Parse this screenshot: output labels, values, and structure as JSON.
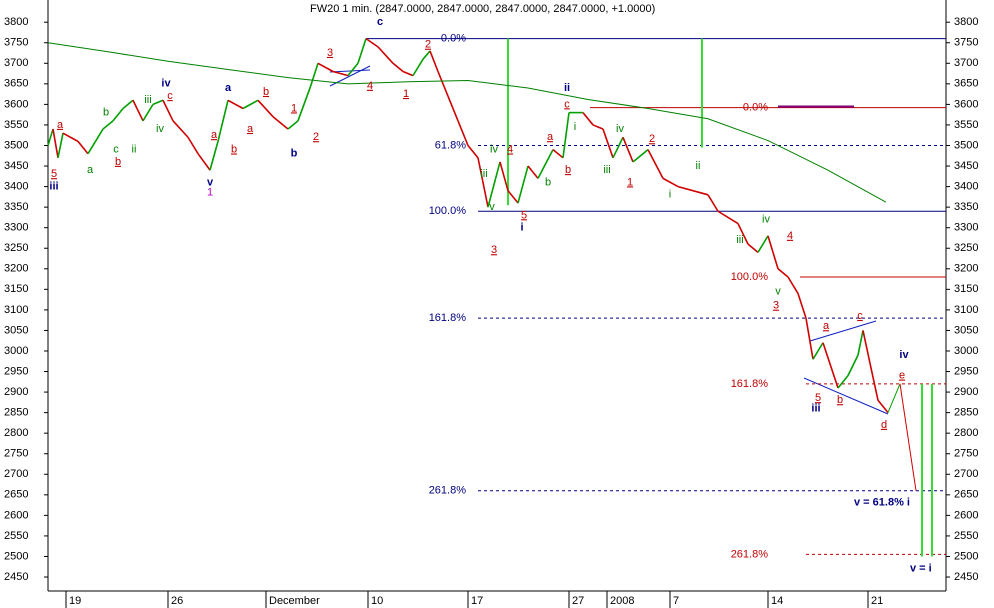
{
  "chart_data": {
    "type": "line",
    "title": "FW20 1 min. (2847.0000, 2847.0000, 2847.0000, 2847.0000, +1.0000)",
    "xlim": [
      0,
      898
    ],
    "ylim": [
      2416,
      3854
    ],
    "yticks": [
      2450,
      2500,
      2550,
      2600,
      2650,
      2700,
      2750,
      2800,
      2850,
      2900,
      2950,
      3000,
      3050,
      3100,
      3150,
      3200,
      3250,
      3300,
      3350,
      3400,
      3450,
      3500,
      3550,
      3600,
      3650,
      3700,
      3750,
      3800
    ],
    "xticks": [
      {
        "value": 18,
        "label": "19"
      },
      {
        "value": 120,
        "label": "26"
      },
      {
        "value": 218,
        "label": "December"
      },
      {
        "value": 320,
        "label": "10"
      },
      {
        "value": 420,
        "label": "17"
      },
      {
        "value": 521,
        "label": "27"
      },
      {
        "value": 559,
        "label": "2008"
      },
      {
        "value": 622,
        "label": "7"
      },
      {
        "value": 720,
        "label": "14"
      },
      {
        "value": 820,
        "label": "21"
      }
    ],
    "up_color": "#00a000",
    "down_color": "#d00000",
    "series": [
      {
        "x": [
          0,
          5,
          10,
          15,
          30,
          40,
          55,
          65,
          75,
          85,
          95,
          105,
          115,
          125,
          140,
          150,
          162,
          170,
          180,
          195,
          210,
          225,
          240,
          250,
          262,
          270,
          285,
          300,
          310,
          318,
          330,
          345,
          355,
          365,
          375,
          382,
          390,
          400,
          410,
          420,
          430,
          440,
          452,
          460,
          470,
          480,
          490,
          505,
          515,
          521,
          535,
          545,
          555,
          565,
          575,
          585,
          600,
          615,
          630,
          645,
          660,
          670,
          690,
          700,
          710,
          720,
          730,
          740,
          750,
          758,
          765,
          775,
          790,
          800,
          810,
          815,
          822,
          830,
          840
        ],
        "values": [
          3500,
          3540,
          3470,
          3530,
          3510,
          3480,
          3540,
          3560,
          3590,
          3610,
          3560,
          3600,
          3610,
          3560,
          3520,
          3480,
          3440,
          3510,
          3610,
          3590,
          3610,
          3570,
          3540,
          3560,
          3640,
          3700,
          3680,
          3670,
          3700,
          3760,
          3740,
          3700,
          3680,
          3670,
          3710,
          3730,
          3680,
          3620,
          3560,
          3500,
          3470,
          3350,
          3460,
          3390,
          3360,
          3450,
          3420,
          3490,
          3470,
          3580,
          3580,
          3550,
          3540,
          3470,
          3520,
          3460,
          3490,
          3420,
          3400,
          3390,
          3380,
          3340,
          3310,
          3260,
          3240,
          3280,
          3200,
          3180,
          3140,
          3080,
          2980,
          3020,
          2910,
          2940,
          2990,
          3050,
          2970,
          2880,
          2850
        ]
      },
      {
        "color": "#008000",
        "x": [
          0,
          60,
          120,
          180,
          240,
          300,
          360,
          420,
          480,
          540,
          600,
          660,
          720,
          780,
          838
        ],
        "values": [
          3750,
          3728,
          3705,
          3685,
          3665,
          3650,
          3655,
          3658,
          3640,
          3612,
          3590,
          3565,
          3512,
          3440,
          3362
        ]
      },
      {
        "color": "#00a000",
        "x": [
          840,
          852
        ],
        "values": [
          2850,
          2920
        ]
      },
      {
        "color": "#d00000",
        "x": [
          852,
          868
        ],
        "values": [
          2920,
          2660
        ]
      }
    ],
    "levels": [
      {
        "label": "0.0%",
        "value": 3760,
        "color": "#000080",
        "dashed": false,
        "from": 318,
        "to": 898
      },
      {
        "label": "61.8%",
        "value": 3500,
        "color": "#000080",
        "dashed": true,
        "from": 430,
        "to": 898
      },
      {
        "label": "100.0%",
        "value": 3340,
        "color": "#000080",
        "dashed": false,
        "from": 430,
        "to": 898
      },
      {
        "label": "161.8%",
        "value": 3080,
        "color": "#000080",
        "dashed": true,
        "from": 430,
        "to": 898
      },
      {
        "label": "261.8%",
        "value": 2660,
        "color": "#000080",
        "dashed": true,
        "from": 430,
        "to": 898
      },
      {
        "label": "0.0%",
        "value": 3592,
        "color": "#c00000",
        "dashed": false,
        "from": 542,
        "to": 898
      },
      {
        "label": "100.0%",
        "value": 3180,
        "color": "#c00000",
        "dashed": false,
        "from": 752,
        "to": 898
      },
      {
        "label": "161.8%",
        "value": 2920,
        "color": "#c00000",
        "dashed": true,
        "from": 758,
        "to": 898
      },
      {
        "label": "261.8%",
        "value": 2505,
        "color": "#c00000",
        "dashed": true,
        "from": 758,
        "to": 898
      }
    ],
    "segments": [
      {
        "color": "#800080",
        "value": 3595,
        "from": 730,
        "to": 806
      }
    ],
    "verticals": [
      {
        "x": 460,
        "from": 3760,
        "to": 3355,
        "color": "#33dd33"
      },
      {
        "x": 654,
        "from": 3760,
        "to": 3495,
        "color": "#33dd33"
      },
      {
        "x": 874,
        "from": 2920,
        "to": 2500,
        "color": "#33dd33"
      },
      {
        "x": 884,
        "from": 2920,
        "to": 2500,
        "color": "#33dd33"
      }
    ],
    "wave_labels": [
      {
        "text": "5",
        "x": 6,
        "y": 3430,
        "color": "#c00000"
      },
      {
        "text": "iii",
        "x": 6,
        "y": 3400,
        "color": "#000080"
      },
      {
        "text": "a",
        "x": 12,
        "y": 3550,
        "color": "#c00000"
      },
      {
        "text": "a",
        "x": 42,
        "y": 3440,
        "color": "#008000"
      },
      {
        "text": "b",
        "x": 58,
        "y": 3580,
        "color": "#008000"
      },
      {
        "text": "c",
        "x": 68,
        "y": 3490,
        "color": "#008000"
      },
      {
        "text": "b",
        "x": 70,
        "y": 3460,
        "color": "#c00000"
      },
      {
        "text": "ii",
        "x": 86,
        "y": 3490,
        "color": "#008000"
      },
      {
        "text": "iii",
        "x": 100,
        "y": 3610,
        "color": "#008000"
      },
      {
        "text": "iv",
        "x": 112,
        "y": 3540,
        "color": "#008000"
      },
      {
        "text": "iv",
        "x": 118,
        "y": 3650,
        "color": "#000080"
      },
      {
        "text": "c",
        "x": 122,
        "y": 3620,
        "color": "#c00000"
      },
      {
        "text": "a",
        "x": 166,
        "y": 3525,
        "color": "#c00000"
      },
      {
        "text": "b",
        "x": 186,
        "y": 3490,
        "color": "#c00000"
      },
      {
        "text": "v",
        "x": 162,
        "y": 3410,
        "color": "#000080"
      },
      {
        "text": "1",
        "x": 162,
        "y": 3385,
        "color": "#c000c0"
      },
      {
        "text": "a",
        "x": 180,
        "y": 3640,
        "color": "#000080"
      },
      {
        "text": "a",
        "x": 202,
        "y": 3540,
        "color": "#c00000"
      },
      {
        "text": "b",
        "x": 218,
        "y": 3630,
        "color": "#c00000"
      },
      {
        "text": "1",
        "x": 246,
        "y": 3590,
        "color": "#c00000"
      },
      {
        "text": "b",
        "x": 246,
        "y": 3480,
        "color": "#000080"
      },
      {
        "text": "2",
        "x": 268,
        "y": 3520,
        "color": "#c00000"
      },
      {
        "text": "3",
        "x": 282,
        "y": 3725,
        "color": "#c00000"
      },
      {
        "text": "4",
        "x": 322,
        "y": 3645,
        "color": "#c00000"
      },
      {
        "text": "c",
        "x": 332,
        "y": 3800,
        "color": "#000080"
      },
      {
        "text": "1",
        "x": 358,
        "y": 3625,
        "color": "#c00000"
      },
      {
        "text": "2",
        "x": 380,
        "y": 3745,
        "color": "#c00000"
      },
      {
        "text": "iv",
        "x": 446,
        "y": 3490,
        "color": "#008000"
      },
      {
        "text": "iii",
        "x": 436,
        "y": 3430,
        "color": "#008000"
      },
      {
        "text": "v",
        "x": 444,
        "y": 3350,
        "color": "#008000"
      },
      {
        "text": "3",
        "x": 446,
        "y": 3245,
        "color": "#c00000"
      },
      {
        "text": "4",
        "x": 462,
        "y": 3490,
        "color": "#c00000"
      },
      {
        "text": "5",
        "x": 476,
        "y": 3330,
        "color": "#c00000"
      },
      {
        "text": "i",
        "x": 474,
        "y": 3300,
        "color": "#000080"
      },
      {
        "text": "b",
        "x": 500,
        "y": 3410,
        "color": "#008000"
      },
      {
        "text": "a",
        "x": 502,
        "y": 3520,
        "color": "#c00000"
      },
      {
        "text": "b",
        "x": 520,
        "y": 3440,
        "color": "#c00000"
      },
      {
        "text": "ii",
        "x": 519,
        "y": 3640,
        "color": "#000080"
      },
      {
        "text": "c",
        "x": 519,
        "y": 3600,
        "color": "#c00000"
      },
      {
        "text": "i",
        "x": 527,
        "y": 3545,
        "color": "#008000"
      },
      {
        "text": "iii",
        "x": 559,
        "y": 3440,
        "color": "#008000"
      },
      {
        "text": "iv",
        "x": 572,
        "y": 3540,
        "color": "#008000"
      },
      {
        "text": "1",
        "x": 582,
        "y": 3410,
        "color": "#c00000"
      },
      {
        "text": "2",
        "x": 604,
        "y": 3515,
        "color": "#c00000"
      },
      {
        "text": "i",
        "x": 622,
        "y": 3380,
        "color": "#008000"
      },
      {
        "text": "ii",
        "x": 650,
        "y": 3450,
        "color": "#008000"
      },
      {
        "text": "iii",
        "x": 692,
        "y": 3270,
        "color": "#008000"
      },
      {
        "text": "iv",
        "x": 718,
        "y": 3320,
        "color": "#008000"
      },
      {
        "text": "4",
        "x": 742,
        "y": 3280,
        "color": "#c00000"
      },
      {
        "text": "v",
        "x": 730,
        "y": 3145,
        "color": "#008000"
      },
      {
        "text": "3",
        "x": 728,
        "y": 3110,
        "color": "#c00000"
      },
      {
        "text": "a",
        "x": 778,
        "y": 3060,
        "color": "#c00000"
      },
      {
        "text": "c",
        "x": 812,
        "y": 3085,
        "color": "#c00000"
      },
      {
        "text": "5",
        "x": 770,
        "y": 2885,
        "color": "#c00000"
      },
      {
        "text": "iii",
        "x": 768,
        "y": 2860,
        "color": "#000080"
      },
      {
        "text": "b",
        "x": 792,
        "y": 2880,
        "color": "#c00000"
      },
      {
        "text": "d",
        "x": 836,
        "y": 2820,
        "color": "#c00000"
      },
      {
        "text": "e",
        "x": 854,
        "y": 2940,
        "color": "#c00000"
      },
      {
        "text": "iv",
        "x": 856,
        "y": 2990,
        "color": "#000080"
      }
    ],
    "notes": [
      {
        "text": "v = 61.8% i",
        "x": 806,
        "y": 2660,
        "color": "#000080"
      },
      {
        "text": "v = i",
        "x": 862,
        "y": 2500,
        "color": "#000080"
      }
    ]
  }
}
